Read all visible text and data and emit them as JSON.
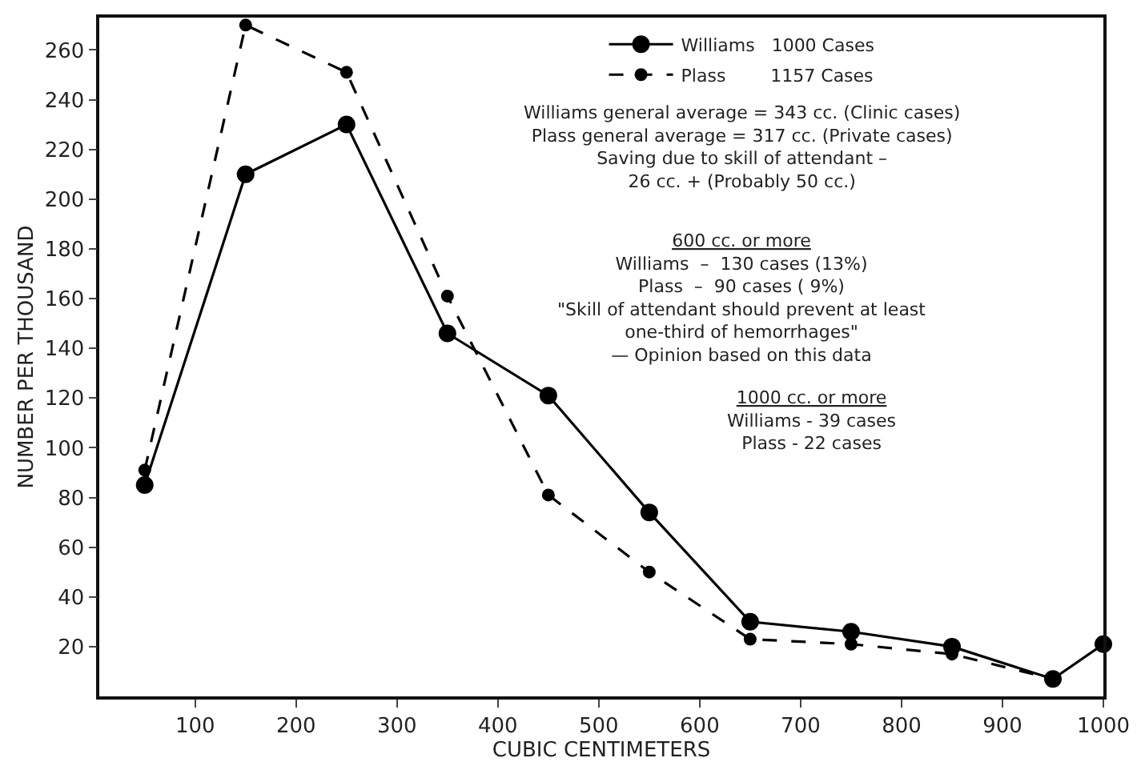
{
  "chart_data": {
    "type": "line",
    "xlabel": "CUBIC CENTIMETERS",
    "ylabel": "NUMBER PER THOUSAND",
    "x": [
      50,
      150,
      250,
      350,
      450,
      550,
      650,
      750,
      850,
      950
    ],
    "series": [
      {
        "name": "Williams   1000 Cases",
        "color": "#000000",
        "line_style": "solid",
        "x": [
          50,
          150,
          250,
          350,
          450,
          550,
          650,
          750,
          850,
          950,
          1000
        ],
        "values": [
          85,
          210,
          230,
          146,
          121,
          74,
          30,
          26,
          20,
          7,
          21
        ]
      },
      {
        "name": "Plass        1157 Cases",
        "color": "#000000",
        "line_style": "dashed",
        "values": [
          91,
          270,
          251,
          161,
          81,
          50,
          23,
          21,
          17,
          7
        ]
      }
    ],
    "marker": "circle",
    "xlim": [
      5,
      1000
    ],
    "xticks": [
      100,
      200,
      300,
      400,
      500,
      600,
      700,
      800,
      900,
      1000
    ],
    "ylim": [
      0,
      273
    ],
    "yticks": [
      20,
      40,
      60,
      80,
      100,
      120,
      140,
      160,
      180,
      200,
      220,
      240,
      260
    ],
    "grid": false,
    "legend": "top right",
    "annotations": [
      "Williams general average = 343 cc. (Clinic cases)\nPlass general average = 317 cc. (Private cases)\nSaving due to skill of attendant –\n26 cc. + (Probably 50 cc.)",
      "600 cc. or more\nWilliams  –  130 cases (13%)\nPlass  –  90 cases ( 9%)\n\"Skill of attendant should prevent at least\none-third of hemorrhages\"\n— Opinion based on this data",
      "1000 cc. or more\nWilliams - 39 cases\nPlass - 22 cases"
    ]
  }
}
